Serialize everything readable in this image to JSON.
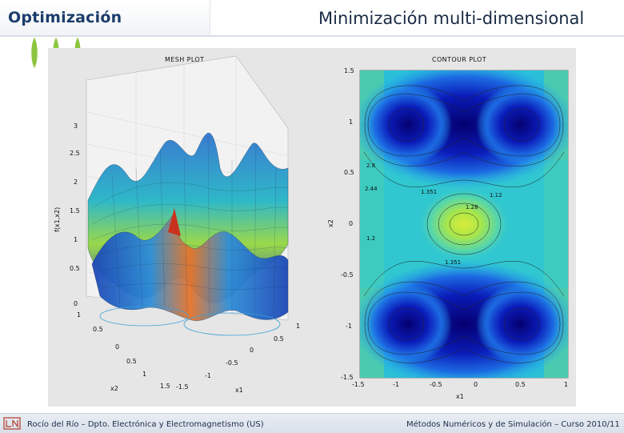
{
  "header": {
    "section_title": "Optimización",
    "slide_title": "Minimización multi-dimensional"
  },
  "figure": {
    "mesh_plot": {
      "title": "MESH PLOT",
      "zlabel": "f(x1,x2)",
      "xlabel": "x1",
      "ylabel": "x2",
      "z_ticks": [
        "3",
        "2.5",
        "2",
        "1.5",
        "1",
        "0.5",
        "0"
      ],
      "x1_ticks": [
        "1",
        "0.5",
        "0",
        "-0.5",
        "-1",
        "-1.5"
      ],
      "x2_ticks": [
        "1",
        "0.5",
        "0",
        "0.5",
        "1",
        "1.5"
      ]
    },
    "contour_plot": {
      "title": "CONTOUR PLOT",
      "xlabel": "x1",
      "ylabel": "x2",
      "y_ticks": [
        "1.5",
        "1",
        "0.5",
        "0",
        "-0.5",
        "-1",
        "-1.5"
      ],
      "x_ticks": [
        "-1.5",
        "-1",
        "-0.5",
        "0",
        "0.5",
        "1"
      ],
      "labels": [
        "1.351",
        "1.12",
        "1.28",
        "1.351",
        "2.8",
        "2.44",
        "1.2"
      ]
    }
  },
  "footer": {
    "left": "Rocío del Río – Dpto. Electrónica y Electromagnetismo (US)",
    "right": "Métodos Numéricos y de Simulación – Curso 2010/11"
  },
  "colors": {
    "title": "#1b3d6a",
    "leaf": "#8cc640",
    "figure_bg": "#e6e6e6",
    "contour_low": "#07007a",
    "contour_mid": "#1fc8d8",
    "contour_high": "#d8ec38"
  }
}
